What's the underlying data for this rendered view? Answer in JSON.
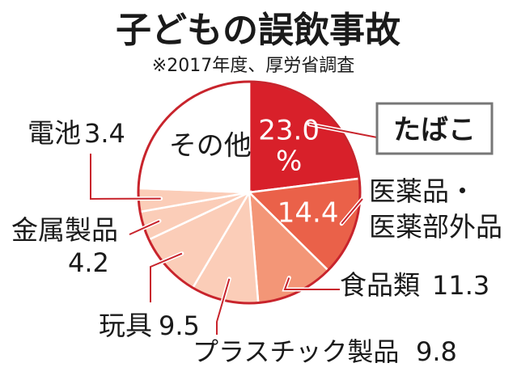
{
  "chart_data": {
    "type": "pie",
    "title": "子どもの誤飲事故",
    "subtitle": "※2017年度、厚労省調査",
    "unit": "%",
    "slices": [
      {
        "label": "たばこ",
        "value": 23.0,
        "value_text": "23.0",
        "color": "#d8202a"
      },
      {
        "label": "医薬品・医薬部外品",
        "label_lines": [
          "医薬品・",
          "医薬部外品"
        ],
        "value": 14.4,
        "value_text": "14.4",
        "color": "#ea6149"
      },
      {
        "label": "食品類",
        "value": 11.3,
        "value_text": "11.3",
        "color": "#f39677"
      },
      {
        "label": "プラスチック製品",
        "value": 9.8,
        "value_text": "9.8",
        "color": "#fbcdb8"
      },
      {
        "label": "玩具",
        "value": 9.5,
        "value_text": "9.5",
        "color": "#fbcdb8"
      },
      {
        "label": "金属製品",
        "value": 4.2,
        "value_text": "4.2",
        "color": "#fbcdb8"
      },
      {
        "label": "電池",
        "value": 3.4,
        "value_text": "3.4",
        "color": "#fbcdb8"
      },
      {
        "label": "その他",
        "value": 24.4,
        "value_text": "",
        "color": "#ffffff"
      }
    ],
    "outline_color": "#c8242c"
  }
}
